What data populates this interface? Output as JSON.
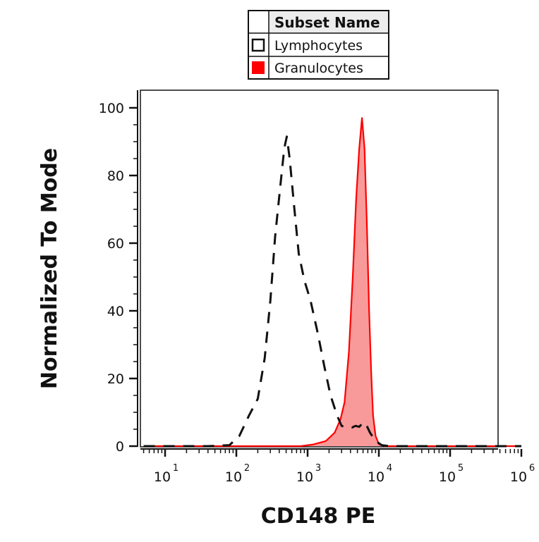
{
  "chart_data": {
    "type": "area",
    "xlabel": "CD148 PE",
    "ylabel": "Normalized To Mode",
    "xscale": "log",
    "xlim": [
      5,
      1000000
    ],
    "ylim": [
      0,
      100
    ],
    "x_ticks": [
      {
        "value": 10,
        "base": "10",
        "exp": "1"
      },
      {
        "value": 100,
        "base": "10",
        "exp": "2"
      },
      {
        "value": 1000,
        "base": "10",
        "exp": "3"
      },
      {
        "value": 10000,
        "base": "10",
        "exp": "4"
      },
      {
        "value": 100000,
        "base": "10",
        "exp": "5"
      },
      {
        "value": 1000000,
        "base": "10",
        "exp": "6"
      }
    ],
    "y_ticks": [
      0,
      20,
      40,
      60,
      80,
      100
    ],
    "legend": {
      "title": "Subset Name",
      "placement": "top-center"
    },
    "series": [
      {
        "name": "Lymphocytes",
        "style": "dashed-outline",
        "color": "#111111",
        "points": [
          [
            5,
            0
          ],
          [
            40,
            0
          ],
          [
            80,
            0.3
          ],
          [
            110,
            3
          ],
          [
            150,
            9
          ],
          [
            200,
            14
          ],
          [
            250,
            26
          ],
          [
            300,
            43
          ],
          [
            350,
            62
          ],
          [
            420,
            78
          ],
          [
            470,
            88
          ],
          [
            510,
            91.5
          ],
          [
            560,
            85
          ],
          [
            640,
            72
          ],
          [
            750,
            57
          ],
          [
            900,
            49
          ],
          [
            1100,
            43
          ],
          [
            1400,
            33
          ],
          [
            1700,
            24
          ],
          [
            2100,
            15
          ],
          [
            2600,
            9
          ],
          [
            3000,
            6
          ],
          [
            3500,
            5.5
          ],
          [
            4200,
            5.5
          ],
          [
            4700,
            6
          ],
          [
            5300,
            5.7
          ],
          [
            6000,
            7
          ],
          [
            6500,
            6.8
          ],
          [
            7500,
            4
          ],
          [
            9000,
            1.5
          ],
          [
            11000,
            0.3
          ],
          [
            14000,
            0
          ],
          [
            1000000,
            0
          ]
        ]
      },
      {
        "name": "Granulocytes",
        "style": "filled",
        "color": "#ff0000",
        "fill": "#f99a9a",
        "points": [
          [
            5,
            0
          ],
          [
            800,
            0
          ],
          [
            1200,
            0.5
          ],
          [
            1800,
            1.5
          ],
          [
            2400,
            4
          ],
          [
            2900,
            8
          ],
          [
            3300,
            13
          ],
          [
            3800,
            28
          ],
          [
            4300,
            50
          ],
          [
            4800,
            73
          ],
          [
            5300,
            88
          ],
          [
            5800,
            97
          ],
          [
            6300,
            88
          ],
          [
            6800,
            65
          ],
          [
            7300,
            40
          ],
          [
            7800,
            22
          ],
          [
            8300,
            9
          ],
          [
            9000,
            3
          ],
          [
            10000,
            0.6
          ],
          [
            12000,
            0
          ],
          [
            1000000,
            0
          ]
        ]
      }
    ]
  }
}
